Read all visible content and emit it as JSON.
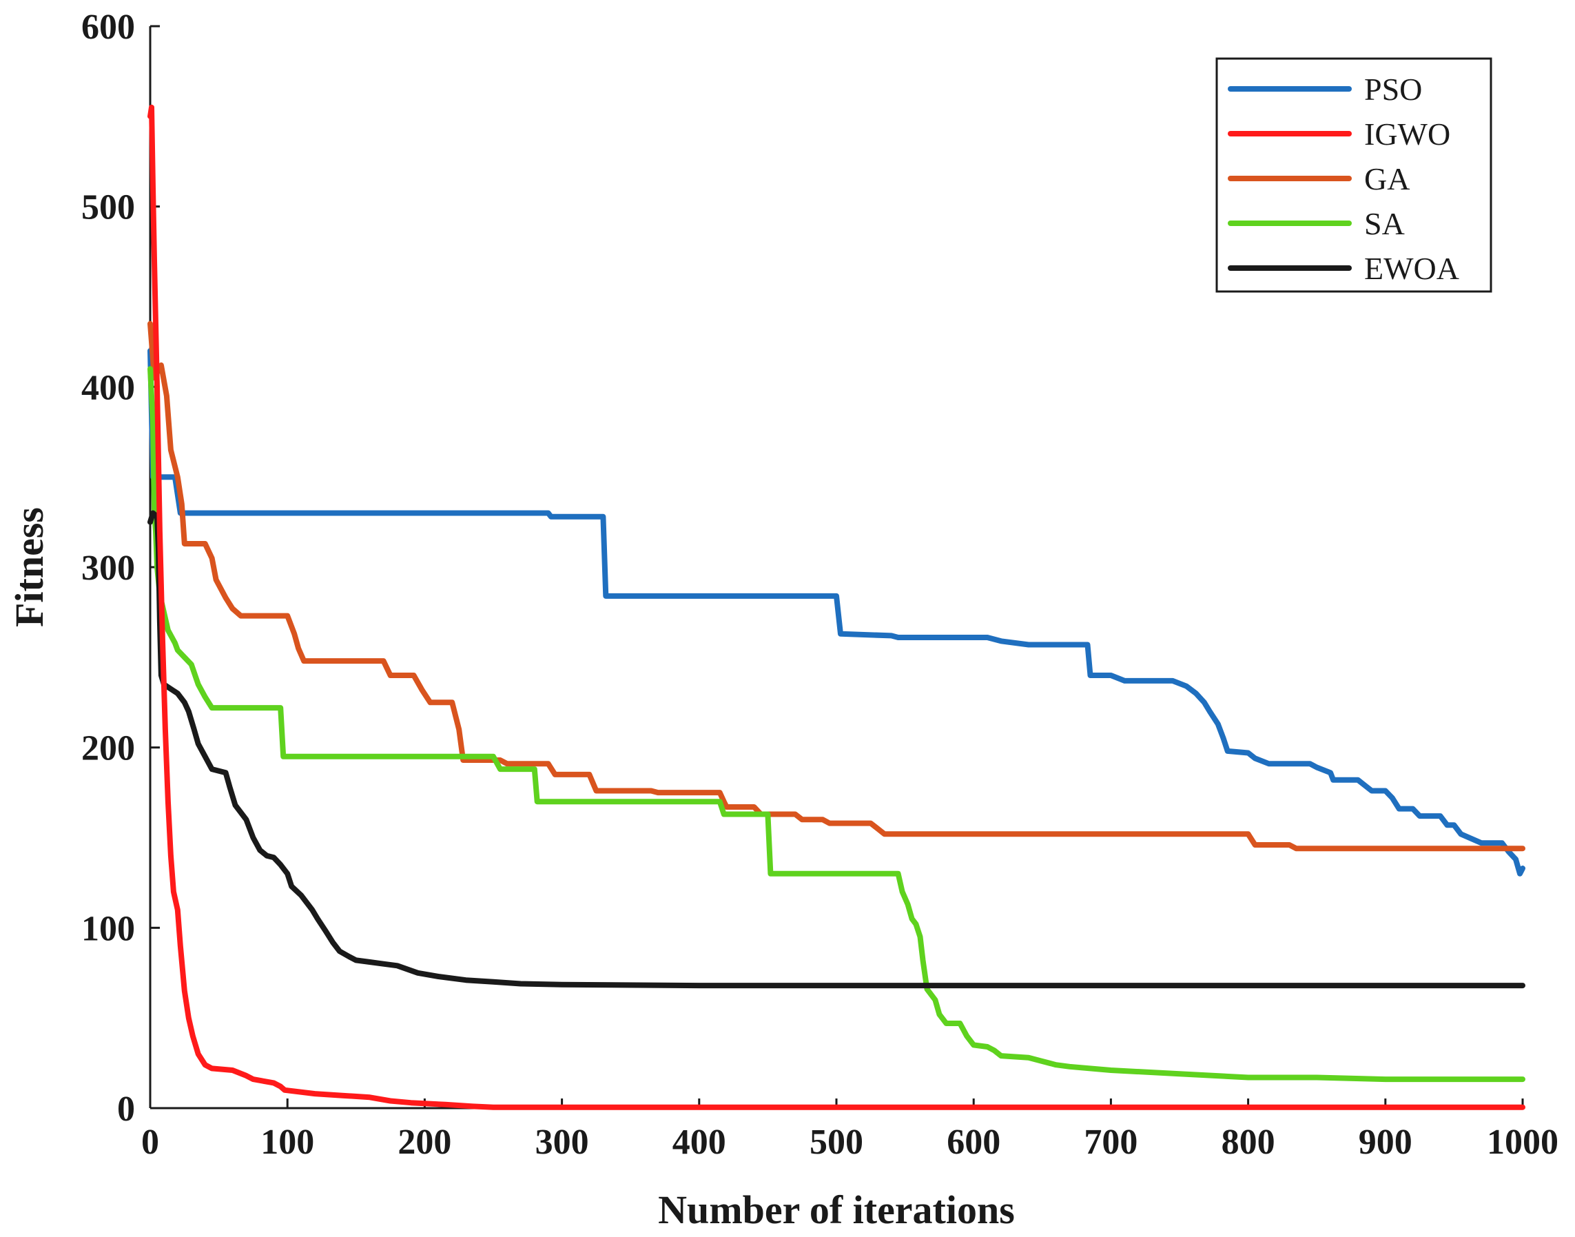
{
  "chart_data": {
    "type": "line",
    "title": "",
    "xlabel": "Number of iterations",
    "ylabel": "Fitness",
    "xlim": [
      0,
      1000
    ],
    "ylim": [
      0,
      600
    ],
    "xticks": [
      "0",
      "100",
      "200",
      "300",
      "400",
      "500",
      "600",
      "700",
      "800",
      "900",
      "1000"
    ],
    "yticks": [
      "0",
      "100",
      "200",
      "300",
      "400",
      "500",
      "600"
    ],
    "legend_position": "top-right",
    "grid": false,
    "series": [
      {
        "name": "PSO",
        "color": "#1f6fbf",
        "points": [
          [
            0,
            420
          ],
          [
            2,
            350
          ],
          [
            18,
            350
          ],
          [
            22,
            330
          ],
          [
            290,
            330
          ],
          [
            292,
            328
          ],
          [
            330,
            328
          ],
          [
            332,
            284
          ],
          [
            500,
            284
          ],
          [
            503,
            263
          ],
          [
            540,
            262
          ],
          [
            545,
            261
          ],
          [
            610,
            261
          ],
          [
            620,
            259
          ],
          [
            640,
            257
          ],
          [
            683,
            257
          ],
          [
            685,
            240
          ],
          [
            700,
            240
          ],
          [
            710,
            237
          ],
          [
            745,
            237
          ],
          [
            755,
            234
          ],
          [
            762,
            230
          ],
          [
            768,
            225
          ],
          [
            772,
            220
          ],
          [
            778,
            213
          ],
          [
            782,
            205
          ],
          [
            785,
            198
          ],
          [
            800,
            197
          ],
          [
            805,
            194
          ],
          [
            815,
            191
          ],
          [
            845,
            191
          ],
          [
            850,
            189
          ],
          [
            860,
            186
          ],
          [
            862,
            182
          ],
          [
            880,
            182
          ],
          [
            885,
            179
          ],
          [
            890,
            176
          ],
          [
            900,
            176
          ],
          [
            905,
            172
          ],
          [
            910,
            166
          ],
          [
            920,
            166
          ],
          [
            925,
            162
          ],
          [
            940,
            162
          ],
          [
            945,
            157
          ],
          [
            950,
            157
          ],
          [
            955,
            152
          ],
          [
            970,
            147
          ],
          [
            985,
            147
          ],
          [
            990,
            142
          ],
          [
            995,
            138
          ],
          [
            998,
            130
          ],
          [
            1000,
            133
          ]
        ]
      },
      {
        "name": "IGWO",
        "color": "#ff1a1a",
        "points": [
          [
            0,
            550
          ],
          [
            1,
            555
          ],
          [
            2,
            510
          ],
          [
            3,
            470
          ],
          [
            5,
            400
          ],
          [
            7,
            320
          ],
          [
            9,
            260
          ],
          [
            11,
            210
          ],
          [
            13,
            170
          ],
          [
            15,
            140
          ],
          [
            17,
            120
          ],
          [
            20,
            110
          ],
          [
            22,
            90
          ],
          [
            25,
            65
          ],
          [
            28,
            50
          ],
          [
            31,
            40
          ],
          [
            35,
            30
          ],
          [
            40,
            24
          ],
          [
            45,
            22
          ],
          [
            60,
            21
          ],
          [
            70,
            18
          ],
          [
            75,
            16
          ],
          [
            90,
            14
          ],
          [
            95,
            12
          ],
          [
            98,
            10
          ],
          [
            120,
            8
          ],
          [
            140,
            7
          ],
          [
            160,
            6
          ],
          [
            175,
            4
          ],
          [
            190,
            3
          ],
          [
            215,
            2
          ],
          [
            235,
            1
          ],
          [
            250,
            0.5
          ],
          [
            1000,
            0.5
          ]
        ]
      },
      {
        "name": "GA",
        "color": "#d9541e",
        "points": [
          [
            0,
            435
          ],
          [
            3,
            405
          ],
          [
            8,
            412
          ],
          [
            12,
            395
          ],
          [
            15,
            365
          ],
          [
            20,
            350
          ],
          [
            23,
            335
          ],
          [
            25,
            313
          ],
          [
            40,
            313
          ],
          [
            45,
            305
          ],
          [
            48,
            293
          ],
          [
            55,
            283
          ],
          [
            60,
            277
          ],
          [
            66,
            273
          ],
          [
            100,
            273
          ],
          [
            105,
            263
          ],
          [
            108,
            255
          ],
          [
            112,
            248
          ],
          [
            170,
            248
          ],
          [
            175,
            240
          ],
          [
            192,
            240
          ],
          [
            198,
            232
          ],
          [
            204,
            225
          ],
          [
            220,
            225
          ],
          [
            225,
            210
          ],
          [
            228,
            193
          ],
          [
            255,
            193
          ],
          [
            260,
            191
          ],
          [
            290,
            191
          ],
          [
            295,
            185
          ],
          [
            320,
            185
          ],
          [
            325,
            176
          ],
          [
            365,
            176
          ],
          [
            370,
            175
          ],
          [
            415,
            175
          ],
          [
            418,
            170
          ],
          [
            420,
            167
          ],
          [
            440,
            167
          ],
          [
            445,
            163
          ],
          [
            470,
            163
          ],
          [
            475,
            160
          ],
          [
            490,
            160
          ],
          [
            495,
            158
          ],
          [
            525,
            158
          ],
          [
            530,
            155
          ],
          [
            535,
            152
          ],
          [
            800,
            152
          ],
          [
            805,
            146
          ],
          [
            830,
            146
          ],
          [
            835,
            144
          ],
          [
            1000,
            144
          ]
        ]
      },
      {
        "name": "SA",
        "color": "#5fd21e",
        "points": [
          [
            0,
            410
          ],
          [
            2,
            380
          ],
          [
            3,
            330
          ],
          [
            4,
            320
          ],
          [
            5,
            300
          ],
          [
            7,
            285
          ],
          [
            10,
            275
          ],
          [
            13,
            265
          ],
          [
            18,
            258
          ],
          [
            20,
            254
          ],
          [
            25,
            250
          ],
          [
            30,
            246
          ],
          [
            35,
            235
          ],
          [
            40,
            228
          ],
          [
            45,
            222
          ],
          [
            95,
            222
          ],
          [
            97,
            195
          ],
          [
            250,
            195
          ],
          [
            255,
            188
          ],
          [
            280,
            188
          ],
          [
            282,
            170
          ],
          [
            415,
            170
          ],
          [
            418,
            163
          ],
          [
            450,
            163
          ],
          [
            452,
            130
          ],
          [
            545,
            130
          ],
          [
            548,
            120
          ],
          [
            552,
            113
          ],
          [
            555,
            105
          ],
          [
            558,
            102
          ],
          [
            561,
            95
          ],
          [
            563,
            82
          ],
          [
            566,
            66
          ],
          [
            572,
            60
          ],
          [
            575,
            52
          ],
          [
            580,
            47
          ],
          [
            590,
            47
          ],
          [
            595,
            40
          ],
          [
            600,
            35
          ],
          [
            610,
            34
          ],
          [
            615,
            32
          ],
          [
            620,
            29
          ],
          [
            640,
            28
          ],
          [
            650,
            26
          ],
          [
            660,
            24
          ],
          [
            670,
            23
          ],
          [
            700,
            21
          ],
          [
            750,
            19
          ],
          [
            800,
            17
          ],
          [
            850,
            17
          ],
          [
            900,
            16
          ],
          [
            950,
            16
          ],
          [
            1000,
            16
          ]
        ]
      },
      {
        "name": "EWOA",
        "color": "#1a1a1a",
        "points": [
          [
            0,
            325
          ],
          [
            2,
            330
          ],
          [
            5,
            328
          ],
          [
            6,
            310
          ],
          [
            7,
            270
          ],
          [
            8,
            240
          ],
          [
            10,
            235
          ],
          [
            20,
            230
          ],
          [
            25,
            225
          ],
          [
            28,
            220
          ],
          [
            32,
            210
          ],
          [
            35,
            202
          ],
          [
            40,
            195
          ],
          [
            45,
            188
          ],
          [
            55,
            186
          ],
          [
            58,
            178
          ],
          [
            62,
            168
          ],
          [
            70,
            160
          ],
          [
            75,
            150
          ],
          [
            80,
            143
          ],
          [
            85,
            140
          ],
          [
            90,
            139
          ],
          [
            95,
            135
          ],
          [
            100,
            130
          ],
          [
            103,
            123
          ],
          [
            110,
            118
          ],
          [
            118,
            110
          ],
          [
            122,
            105
          ],
          [
            128,
            98
          ],
          [
            133,
            92
          ],
          [
            138,
            87
          ],
          [
            145,
            84
          ],
          [
            150,
            82
          ],
          [
            160,
            81
          ],
          [
            170,
            80
          ],
          [
            180,
            79
          ],
          [
            195,
            75
          ],
          [
            210,
            73
          ],
          [
            230,
            71
          ],
          [
            250,
            70
          ],
          [
            270,
            69
          ],
          [
            300,
            68.5
          ],
          [
            400,
            68
          ],
          [
            1000,
            68
          ]
        ]
      }
    ]
  }
}
